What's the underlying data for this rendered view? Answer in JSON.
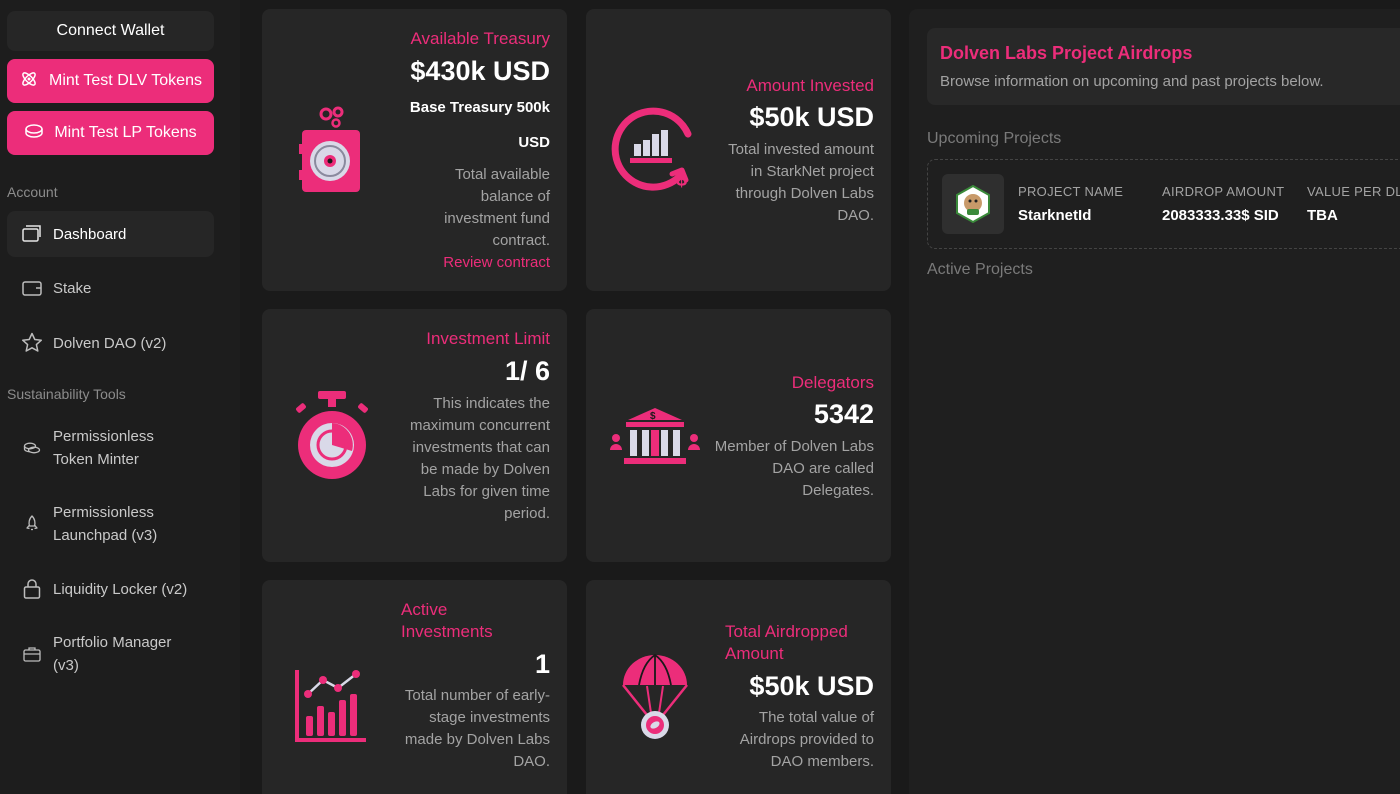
{
  "sidebar": {
    "connect_wallet": "Connect Wallet",
    "mint_dlv": "Mint Test DLV Tokens",
    "mint_lp": "Mint Test LP Tokens",
    "account_title": "Account",
    "account_items": [
      {
        "label": "Dashboard",
        "icon": "dashboard-icon"
      },
      {
        "label": "Stake",
        "icon": "wallet-icon"
      },
      {
        "label": "Dolven DAO (v2)",
        "icon": "star-icon"
      }
    ],
    "tools_title": "Sustainability Tools",
    "tool_items": [
      {
        "label": "Permissionless Token Minter",
        "icon": "coins-icon"
      },
      {
        "label": "Permissionless Launchpad (v3)",
        "icon": "rocket-icon"
      },
      {
        "label": "Liquidity Locker (v2)",
        "icon": "lock-icon"
      },
      {
        "label": "Portfolio Manager (v3)",
        "icon": "briefcase-icon"
      }
    ]
  },
  "cards": {
    "treasury": {
      "label": "Available Treasury",
      "value": "$430k USD",
      "base": "Base Treasury 500k",
      "base_unit": "USD",
      "desc": "Total available balance of investment fund contract.",
      "link": "Review contract"
    },
    "invested": {
      "label": "Amount Invested",
      "value": "$50k USD",
      "desc": "Total invested amount in StarkNet project through Dolven Labs DAO."
    },
    "limit": {
      "label": "Investment Limit",
      "value": "1/ 6",
      "desc": "This indicates the maximum concurrent investments that can be made by Dolven Labs for given time period."
    },
    "delegators": {
      "label": "Delegators",
      "value": "5342",
      "desc": "Member of Dolven Labs DAO are called Delegates."
    },
    "active": {
      "label": "Active Investments",
      "value": "1",
      "desc": "Total number of early-stage investments made by Dolven Labs DAO."
    },
    "airdropped": {
      "label": "Total Airdropped Amount",
      "value": "$50k USD",
      "desc": "The total value of Airdrops provided to DAO members."
    }
  },
  "panel": {
    "title": "Dolven Labs Project Airdrops",
    "subtitle": "Browse information on upcoming and past projects below.",
    "upcoming_title": "Upcoming Projects",
    "active_title": "Active Projects",
    "project": {
      "col_name": "PROJECT NAME",
      "col_amount": "AIRDROP AMOUNT",
      "col_value": "VALUE PER DL",
      "name": "StarknetId",
      "amount": "2083333.33$ SID",
      "value": "TBA"
    }
  },
  "colors": {
    "accent": "#ec2d7a",
    "card": "#262626",
    "background": "#1a1a1a"
  }
}
